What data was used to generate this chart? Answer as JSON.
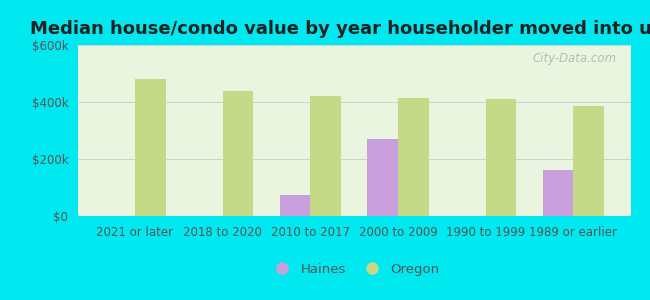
{
  "title": "Median house/condo value by year householder moved into unit",
  "categories": [
    "2021 or later",
    "2018 to 2020",
    "2010 to 2017",
    "2000 to 2009",
    "1990 to 1999",
    "1989 or earlier"
  ],
  "haines_values": [
    null,
    null,
    75000,
    270000,
    null,
    160000
  ],
  "oregon_values": [
    480000,
    440000,
    420000,
    415000,
    410000,
    385000
  ],
  "haines_color": "#c9a0dc",
  "oregon_color": "#c5d987",
  "background_outer": "#00e8f0",
  "background_inner": "#eaf5e0",
  "ylim": [
    0,
    600000
  ],
  "yticks": [
    0,
    200000,
    400000,
    600000
  ],
  "ytick_labels": [
    "$0",
    "$200k",
    "$400k",
    "$600k"
  ],
  "bar_width": 0.35,
  "legend_labels": [
    "Haines",
    "Oregon"
  ],
  "watermark": "City-Data.com",
  "title_fontsize": 13,
  "tick_fontsize": 8.5,
  "legend_fontsize": 9.5
}
